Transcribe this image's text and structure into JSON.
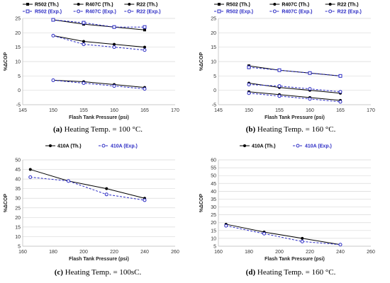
{
  "chart_data": [
    {
      "id": "a",
      "type": "line",
      "caption_letter": "(a)",
      "caption_text": " Heating Temp. = 100 °C.",
      "xlabel": "Flash Tank Pressure (psi)",
      "ylabel": "%ΔCOP",
      "xlim": [
        145,
        170
      ],
      "ylim": [
        -5,
        25
      ],
      "xticks": [
        145,
        150,
        155,
        160,
        165,
        170
      ],
      "yticks": [
        -5,
        0,
        5,
        10,
        15,
        20,
        25
      ],
      "grid": "horizontal",
      "legend_position": "top",
      "legend_columns": 3,
      "series": [
        {
          "name": "R502 (Th.)",
          "style": "solid",
          "marker": "square",
          "x": [
            150,
            155,
            160,
            165
          ],
          "y": [
            24.5,
            23.0,
            22.0,
            21.0
          ]
        },
        {
          "name": "R407C (Th.)",
          "style": "solid",
          "marker": "dot",
          "x": [
            150,
            155,
            160,
            165
          ],
          "y": [
            19.0,
            17.0,
            16.0,
            15.0
          ]
        },
        {
          "name": "R22 (Th.)",
          "style": "solid",
          "marker": "dot",
          "x": [
            150,
            155,
            160,
            165
          ],
          "y": [
            3.5,
            3.0,
            2.0,
            1.0
          ]
        },
        {
          "name": "R502 (Exp.)",
          "style": "dashed",
          "marker": "open-square",
          "x": [
            150,
            155,
            160,
            165
          ],
          "y": [
            24.5,
            23.5,
            22.0,
            22.0
          ]
        },
        {
          "name": "R407C (Exp.)",
          "style": "dashed",
          "marker": "open-circle",
          "x": [
            150,
            155,
            160,
            165
          ],
          "y": [
            19.0,
            16.0,
            15.0,
            14.0
          ]
        },
        {
          "name": "R22 (Exp.)",
          "style": "dashed",
          "marker": "open-circle",
          "x": [
            150,
            155,
            160,
            165
          ],
          "y": [
            3.5,
            2.5,
            1.5,
            0.5
          ]
        }
      ]
    },
    {
      "id": "b",
      "type": "line",
      "caption_letter": "(b)",
      "caption_text": " Heating Temp. = 160 °C.",
      "xlabel": "Flash Tank Pressure (psi)",
      "ylabel": "%ΔCOP",
      "xlim": [
        145,
        170
      ],
      "ylim": [
        -5,
        25
      ],
      "xticks": [
        145,
        150,
        155,
        160,
        165,
        170
      ],
      "yticks": [
        -5,
        0,
        5,
        10,
        15,
        20,
        25
      ],
      "grid": "horizontal",
      "legend_position": "top",
      "legend_columns": 3,
      "series": [
        {
          "name": "R502 (Th.)",
          "style": "solid",
          "marker": "square",
          "x": [
            150,
            155,
            160,
            165
          ],
          "y": [
            8.5,
            7.0,
            6.0,
            5.0
          ]
        },
        {
          "name": "R407C (Th.)",
          "style": "solid",
          "marker": "dot",
          "x": [
            150,
            155,
            160,
            165
          ],
          "y": [
            2.5,
            1.0,
            0.0,
            -1.0
          ]
        },
        {
          "name": "R22 (Th.)",
          "style": "solid",
          "marker": "dot",
          "x": [
            150,
            155,
            160,
            165
          ],
          "y": [
            -0.5,
            -1.5,
            -2.5,
            -3.5
          ]
        },
        {
          "name": "R502 (Exp.)",
          "style": "dashed",
          "marker": "open-square",
          "x": [
            150,
            155,
            160,
            165
          ],
          "y": [
            8.0,
            7.0,
            6.0,
            5.0
          ]
        },
        {
          "name": "R407C (Exp.)",
          "style": "dashed",
          "marker": "open-circle",
          "x": [
            150,
            155,
            160,
            165
          ],
          "y": [
            2.0,
            1.5,
            0.5,
            -0.5
          ]
        },
        {
          "name": "R22 (Exp.)",
          "style": "dashed",
          "marker": "open-circle",
          "x": [
            150,
            155,
            160,
            165
          ],
          "y": [
            -1.0,
            -2.0,
            -3.0,
            -4.0
          ]
        }
      ]
    },
    {
      "id": "c",
      "type": "line",
      "caption_letter": "(c)",
      "caption_text": " Heating Temp. = 100sC.",
      "xlabel": "Flash Tank Pressure (psi)",
      "ylabel": "%ΔCOP",
      "xlim": [
        160,
        260
      ],
      "ylim": [
        5,
        50
      ],
      "xticks": [
        160,
        180,
        200,
        220,
        240,
        260
      ],
      "yticks": [
        5,
        10,
        15,
        20,
        25,
        30,
        35,
        40,
        45,
        50
      ],
      "grid": "horizontal",
      "legend_position": "top",
      "legend_columns": 2,
      "series": [
        {
          "name": "410A (Th.)",
          "style": "solid",
          "marker": "dot",
          "x": [
            165,
            190,
            215,
            240
          ],
          "y": [
            45.0,
            39.0,
            35.0,
            30.0
          ]
        },
        {
          "name": "410A (Exp.)",
          "style": "dashed",
          "marker": "open-circle",
          "x": [
            165,
            190,
            215,
            240
          ],
          "y": [
            41.0,
            39.0,
            32.0,
            29.0
          ]
        }
      ]
    },
    {
      "id": "d",
      "type": "line",
      "caption_letter": "(d)",
      "caption_text": " Heating Temp. = 160 °C.",
      "xlabel": "Flash Tank Pressure (psi)",
      "ylabel": "%ΔCOP",
      "xlim": [
        160,
        260
      ],
      "ylim": [
        5,
        60
      ],
      "xticks": [
        160,
        180,
        200,
        220,
        240,
        260
      ],
      "yticks": [
        5,
        10,
        15,
        20,
        25,
        30,
        35,
        40,
        45,
        50,
        55,
        60
      ],
      "grid": "horizontal",
      "legend_position": "top",
      "legend_columns": 2,
      "series": [
        {
          "name": "410A (Th.)",
          "style": "solid",
          "marker": "dot",
          "x": [
            165,
            190,
            215,
            240
          ],
          "y": [
            19.0,
            14.0,
            10.0,
            6.0
          ]
        },
        {
          "name": "410A (Exp.)",
          "style": "dashed",
          "marker": "open-circle",
          "x": [
            165,
            190,
            215,
            240
          ],
          "y": [
            18.0,
            13.0,
            8.0,
            6.0
          ]
        }
      ]
    }
  ],
  "colors": {
    "theory": "#000000",
    "experiment": "#2b2bc4",
    "grid": "#d9d9d9",
    "axis": "#bfbfbf"
  }
}
